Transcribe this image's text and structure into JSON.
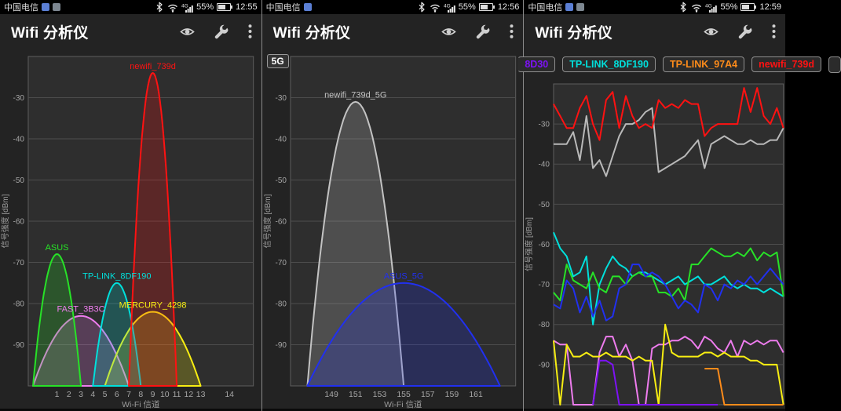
{
  "panels": [
    {
      "status": {
        "carrier": "中国电信",
        "network": "4G",
        "battery_pct": "55%",
        "time": "12:55"
      },
      "appbar": {
        "title": "Wifi 分析仪"
      }
    },
    {
      "status": {
        "carrier": "中国电信",
        "network": "4G",
        "battery_pct": "55%",
        "time": "12:56"
      },
      "appbar": {
        "title": "Wifi 分析仪"
      }
    },
    {
      "status": {
        "carrier": "中国电信",
        "network": "4G",
        "battery_pct": "55%",
        "time": "12:59"
      },
      "appbar": {
        "title": "Wifi 分析仪"
      }
    }
  ],
  "colors": {
    "plot_bg": "#2e2e2e",
    "panel_bg": "#232323",
    "grid": "#4d4d4d",
    "plot_border": "#5e5e5e",
    "tick_text": "#a6a6a6",
    "axis_title": "#9b9b9b"
  },
  "chart_data": [
    {
      "type": "area",
      "band": "2.4GHz",
      "xlabel": "Wi-Fi 信道",
      "ylabel": "信号强度 [dBm]",
      "ylim": [
        -100,
        -20
      ],
      "yticks": [
        -30,
        -40,
        -50,
        -60,
        -70,
        -80,
        -90
      ],
      "xticks": [
        1,
        2,
        3,
        4,
        5,
        6,
        7,
        8,
        9,
        10,
        11,
        12,
        13,
        14
      ],
      "x_mode": "freq24",
      "grid": "horizontal",
      "networks": [
        {
          "ssid": "FAST_3B3C",
          "color": "#ee7cee",
          "center": 2422,
          "half": 20,
          "peak_dbm": -83,
          "channel": 3
        },
        {
          "ssid": "MERCURY_4298",
          "color": "#f8ee12",
          "center": 2452,
          "half": 20,
          "peak_dbm": -82,
          "channel": 9
        },
        {
          "ssid": "TP-LINK_8DF190",
          "color": "#00e0dc",
          "center": 2437,
          "half": 10,
          "peak_dbm": -75,
          "channel": 6
        },
        {
          "ssid": "ASUS",
          "color": "#27e227",
          "center": 2412,
          "half": 10,
          "peak_dbm": -68,
          "channel": 1
        },
        {
          "ssid": "newifi_739d",
          "color": "#ff1212",
          "center": 2452,
          "half": 10,
          "peak_dbm": -24,
          "channel": 9
        }
      ]
    },
    {
      "type": "area",
      "band": "5GHz",
      "badge": "5G",
      "xlabel": "Wi-Fi 信道",
      "ylabel": "信号强度 [dBm]",
      "ylim": [
        -100,
        -20
      ],
      "yticks": [
        -30,
        -40,
        -50,
        -60,
        -70,
        -80,
        -90
      ],
      "xticks": [
        149,
        151,
        153,
        155,
        157,
        159,
        161
      ],
      "x_mode": "channel",
      "grid": "horizontal",
      "networks": [
        {
          "ssid": "newifi_739d_5G",
          "color": "#c3c3c3",
          "center": 151,
          "half": 4,
          "peak_dbm": -31,
          "channel": 151
        },
        {
          "ssid": "ASUS_5G",
          "color": "#2130f0",
          "center": 155,
          "half": 8,
          "peak_dbm": -75,
          "channel": 155
        }
      ]
    },
    {
      "type": "line",
      "band": "time-graph",
      "ylabel": "信号强度 [dBm]",
      "ylim": [
        -100,
        -20
      ],
      "yticks": [
        -30,
        -40,
        -50,
        -60,
        -70,
        -80,
        -90
      ],
      "grid": "horizontal",
      "legend_position": "top",
      "legend": [
        {
          "label": "8D30",
          "color": "#7d12f5"
        },
        {
          "label": "TP-LINK_8DF190",
          "color": "#00e0dc"
        },
        {
          "label": "TP-LINK_97A4",
          "color": "#ff8c1a"
        },
        {
          "label": "newifi_739d",
          "color": "#ff1212"
        }
      ],
      "series": [
        {
          "name": "FAST_3B3C",
          "color": "#ee7cee",
          "values": [
            -84,
            -85,
            -85,
            -100,
            -100,
            -100,
            -100,
            -87,
            -83,
            -83,
            -88,
            -85,
            -89,
            -100,
            -100,
            -86,
            -85,
            -85,
            -84,
            -84,
            -83,
            -84,
            -86,
            -83,
            -84,
            -86,
            -87,
            -84,
            -88,
            -84,
            -85,
            -84,
            -85,
            -84,
            -84,
            -87
          ]
        },
        {
          "name": "MERCURY_4298",
          "color": "#f8ee12",
          "values": [
            -84,
            -100,
            -85,
            -88,
            -88,
            -87,
            -88,
            -88,
            -87,
            -88,
            -88,
            -88,
            -89,
            -88,
            -89,
            -89,
            -100,
            -80,
            -87,
            -88,
            -88,
            -88,
            -88,
            -87,
            -87,
            -88,
            -87,
            -88,
            -88,
            -88,
            -89,
            -89,
            -90,
            -90,
            -90,
            -100
          ]
        },
        {
          "name": "8D30",
          "color": "#7d12f5",
          "values": [
            null,
            null,
            null,
            null,
            null,
            null,
            -100,
            -89,
            -89,
            -90,
            -100,
            -100,
            -100,
            -100,
            -100,
            -100,
            -100,
            -100,
            -100,
            -100,
            -100,
            -100,
            -100,
            -100,
            -100,
            -100,
            null,
            null,
            null,
            null,
            null,
            null,
            null,
            null,
            null,
            null
          ]
        },
        {
          "name": "TP-LINK_97A4",
          "color": "#ff8c1a",
          "values": [
            null,
            null,
            null,
            null,
            null,
            null,
            null,
            null,
            null,
            null,
            null,
            null,
            null,
            null,
            null,
            null,
            null,
            null,
            null,
            null,
            null,
            null,
            null,
            -91,
            -91,
            -91,
            -100,
            -100,
            -100,
            -100,
            -100,
            -100,
            -100,
            -100,
            -100,
            -100
          ]
        },
        {
          "name": "TP-LINK_8DF190",
          "color": "#00e0dc",
          "values": [
            -57,
            -61,
            -63,
            -68,
            -67,
            -63,
            -80,
            -70,
            -66,
            -63,
            -65,
            -66,
            -68,
            -67,
            -67,
            -68,
            -69,
            -70,
            -69,
            -68,
            -70,
            -69,
            -68,
            -70,
            -70,
            -69,
            -68,
            -70,
            -71,
            -70,
            -71,
            -71,
            -72,
            -71,
            -72,
            -73
          ]
        },
        {
          "name": "ASUS",
          "color": "#27e227",
          "values": [
            -72,
            -74,
            -65,
            -69,
            -70,
            -71,
            -67,
            -71,
            -72,
            -68,
            -68,
            -70,
            -68,
            -67,
            -68,
            -68,
            -72,
            -72,
            -73,
            -71,
            -74,
            -65,
            -65,
            -63,
            -61,
            -62,
            -63,
            -63,
            -62,
            -63,
            -61,
            -64,
            -62,
            -63,
            -62,
            -73
          ]
        },
        {
          "name": "ASUS_5G",
          "color": "#2130f0",
          "values": [
            -75,
            -76,
            -69,
            -71,
            -77,
            -73,
            -78,
            -74,
            -79,
            -78,
            -71,
            -70,
            -65,
            -65,
            -68,
            -67,
            -68,
            -70,
            -73,
            -76,
            -74,
            -75,
            -77,
            -70,
            -71,
            -74,
            -70,
            -71,
            -69,
            -70,
            -68,
            -70,
            -68,
            -66,
            -68,
            -70
          ]
        },
        {
          "name": "newifi_739d_5G",
          "color": "#b9b9b9",
          "values": [
            -35,
            -35,
            -35,
            -32,
            -39,
            -28,
            -41,
            -39,
            -43,
            -38,
            -33,
            -30,
            -30,
            -29,
            -27,
            -26,
            -42,
            -41,
            -40,
            -39,
            -38,
            -36,
            -34,
            -41,
            -35,
            -34,
            -33,
            -34,
            -35,
            -35,
            -34,
            -35,
            -35,
            -34,
            -34,
            -31
          ]
        },
        {
          "name": "newifi_739d",
          "color": "#ff1212",
          "values": [
            -25,
            -28,
            -31,
            -31,
            -26,
            -23,
            -30,
            -34,
            -24,
            -22,
            -31,
            -23,
            -28,
            -31,
            -30,
            -31,
            -24,
            -26,
            -25,
            -26,
            -24,
            -25,
            -25,
            -33,
            -31,
            -30,
            -30,
            -30,
            -30,
            -21,
            -27,
            -21,
            -28,
            -30,
            -26,
            -31
          ]
        }
      ]
    }
  ]
}
